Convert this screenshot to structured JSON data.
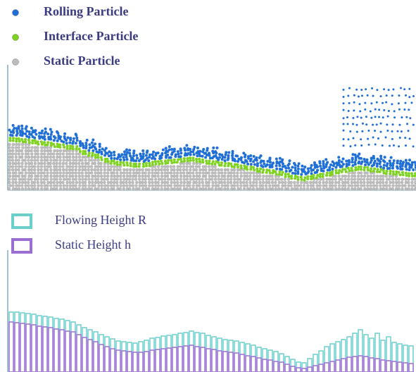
{
  "particle_legend": [
    {
      "label": "Rolling Particle",
      "color": "#1f6fd6"
    },
    {
      "label": "Interface Particle",
      "color": "#7ed321"
    },
    {
      "label": "Static Particle",
      "color": "#bdbdbd"
    }
  ],
  "chart_data": {
    "type": "bar",
    "series": [
      {
        "name": "Flowing Height R",
        "color": "#6ccfcb",
        "values": [
          85,
          85,
          84,
          83,
          82,
          80,
          79,
          78,
          76,
          75,
          73,
          71,
          67,
          63,
          60,
          57,
          53,
          50,
          47,
          44,
          43,
          42,
          41,
          43,
          45,
          48,
          49,
          51,
          52,
          53,
          55,
          56,
          58,
          56,
          55,
          52,
          50,
          48,
          46,
          45,
          44,
          42,
          40,
          38,
          35,
          33,
          31,
          29,
          26,
          22,
          18,
          14,
          13,
          19,
          25,
          30,
          36,
          40,
          43,
          46,
          50,
          55,
          60,
          53,
          48,
          55,
          45,
          50,
          42,
          40,
          38,
          37
        ]
      },
      {
        "name": "Static Height h",
        "color": "#9b6fd2",
        "values": [
          71,
          70,
          69,
          68,
          67,
          65,
          64,
          63,
          61,
          60,
          58,
          57,
          53,
          49,
          46,
          43,
          39,
          36,
          33,
          31,
          30,
          29,
          28,
          28,
          29,
          31,
          32,
          33,
          34,
          35,
          36,
          37,
          38,
          36,
          35,
          33,
          32,
          30,
          29,
          28,
          27,
          25,
          23,
          22,
          20,
          18,
          17,
          15,
          14,
          11,
          8,
          6,
          5,
          7,
          9,
          11,
          13,
          15,
          17,
          19,
          21,
          22,
          23,
          22,
          20,
          19,
          17,
          16,
          15,
          14,
          13,
          12
        ]
      }
    ],
    "ylim": [
      0,
      90
    ]
  }
}
